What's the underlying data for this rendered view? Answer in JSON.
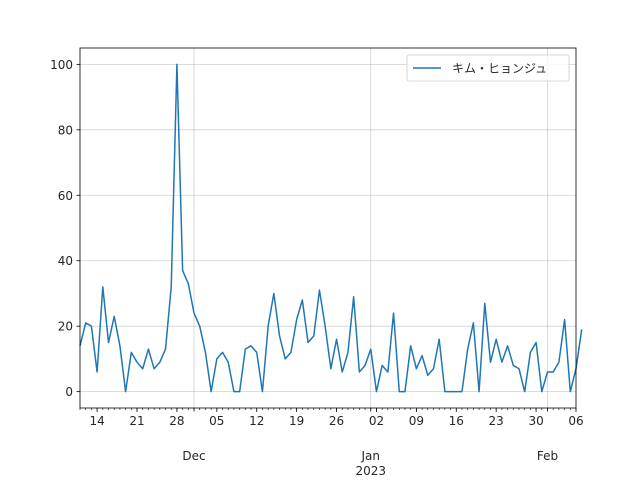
{
  "chart_data": {
    "type": "line",
    "x_start": "2022-11-11",
    "x_end": "2023-02-06",
    "series": [
      {
        "name": "キム・ヒョンジュ",
        "color": "#1f77b4",
        "values": [
          14,
          21,
          20,
          6,
          32,
          15,
          23,
          14,
          0,
          12,
          9,
          7,
          13,
          7,
          9,
          13,
          32,
          100,
          37,
          33,
          24,
          20,
          12,
          0,
          10,
          12,
          9,
          0,
          0,
          13,
          14,
          12,
          0,
          20,
          30,
          17,
          10,
          12,
          22,
          28,
          15,
          17,
          31,
          20,
          7,
          16,
          6,
          12,
          29,
          6,
          8,
          13,
          0,
          8,
          6,
          24,
          0,
          0,
          14,
          7,
          11,
          5,
          7,
          16,
          0,
          0,
          0,
          0,
          13,
          21,
          0,
          27,
          9,
          16,
          9,
          14,
          8,
          7,
          0,
          12,
          15,
          0,
          6,
          6,
          9,
          22,
          0,
          7,
          19
        ]
      }
    ],
    "ylim": [
      -5,
      105
    ],
    "yticks": [
      0,
      20,
      40,
      60,
      80,
      100
    ],
    "xticks_minor": [
      {
        "date": "2022-11-14",
        "label": "14"
      },
      {
        "date": "2022-11-21",
        "label": "21"
      },
      {
        "date": "2022-11-28",
        "label": "28"
      },
      {
        "date": "2022-12-05",
        "label": "05"
      },
      {
        "date": "2022-12-12",
        "label": "12"
      },
      {
        "date": "2022-12-19",
        "label": "19"
      },
      {
        "date": "2022-12-26",
        "label": "26"
      },
      {
        "date": "2023-01-02",
        "label": "02"
      },
      {
        "date": "2023-01-09",
        "label": "09"
      },
      {
        "date": "2023-01-16",
        "label": "16"
      },
      {
        "date": "2023-01-23",
        "label": "23"
      },
      {
        "date": "2023-01-30",
        "label": "30"
      },
      {
        "date": "2023-02-06",
        "label": "06"
      }
    ],
    "xticks_major": [
      {
        "date": "2022-12-01",
        "label": "Dec",
        "sublabel": ""
      },
      {
        "date": "2023-01-01",
        "label": "Jan",
        "sublabel": "2023"
      },
      {
        "date": "2023-02-01",
        "label": "Feb",
        "sublabel": ""
      }
    ],
    "grid": true,
    "legend_position": "top-right"
  }
}
